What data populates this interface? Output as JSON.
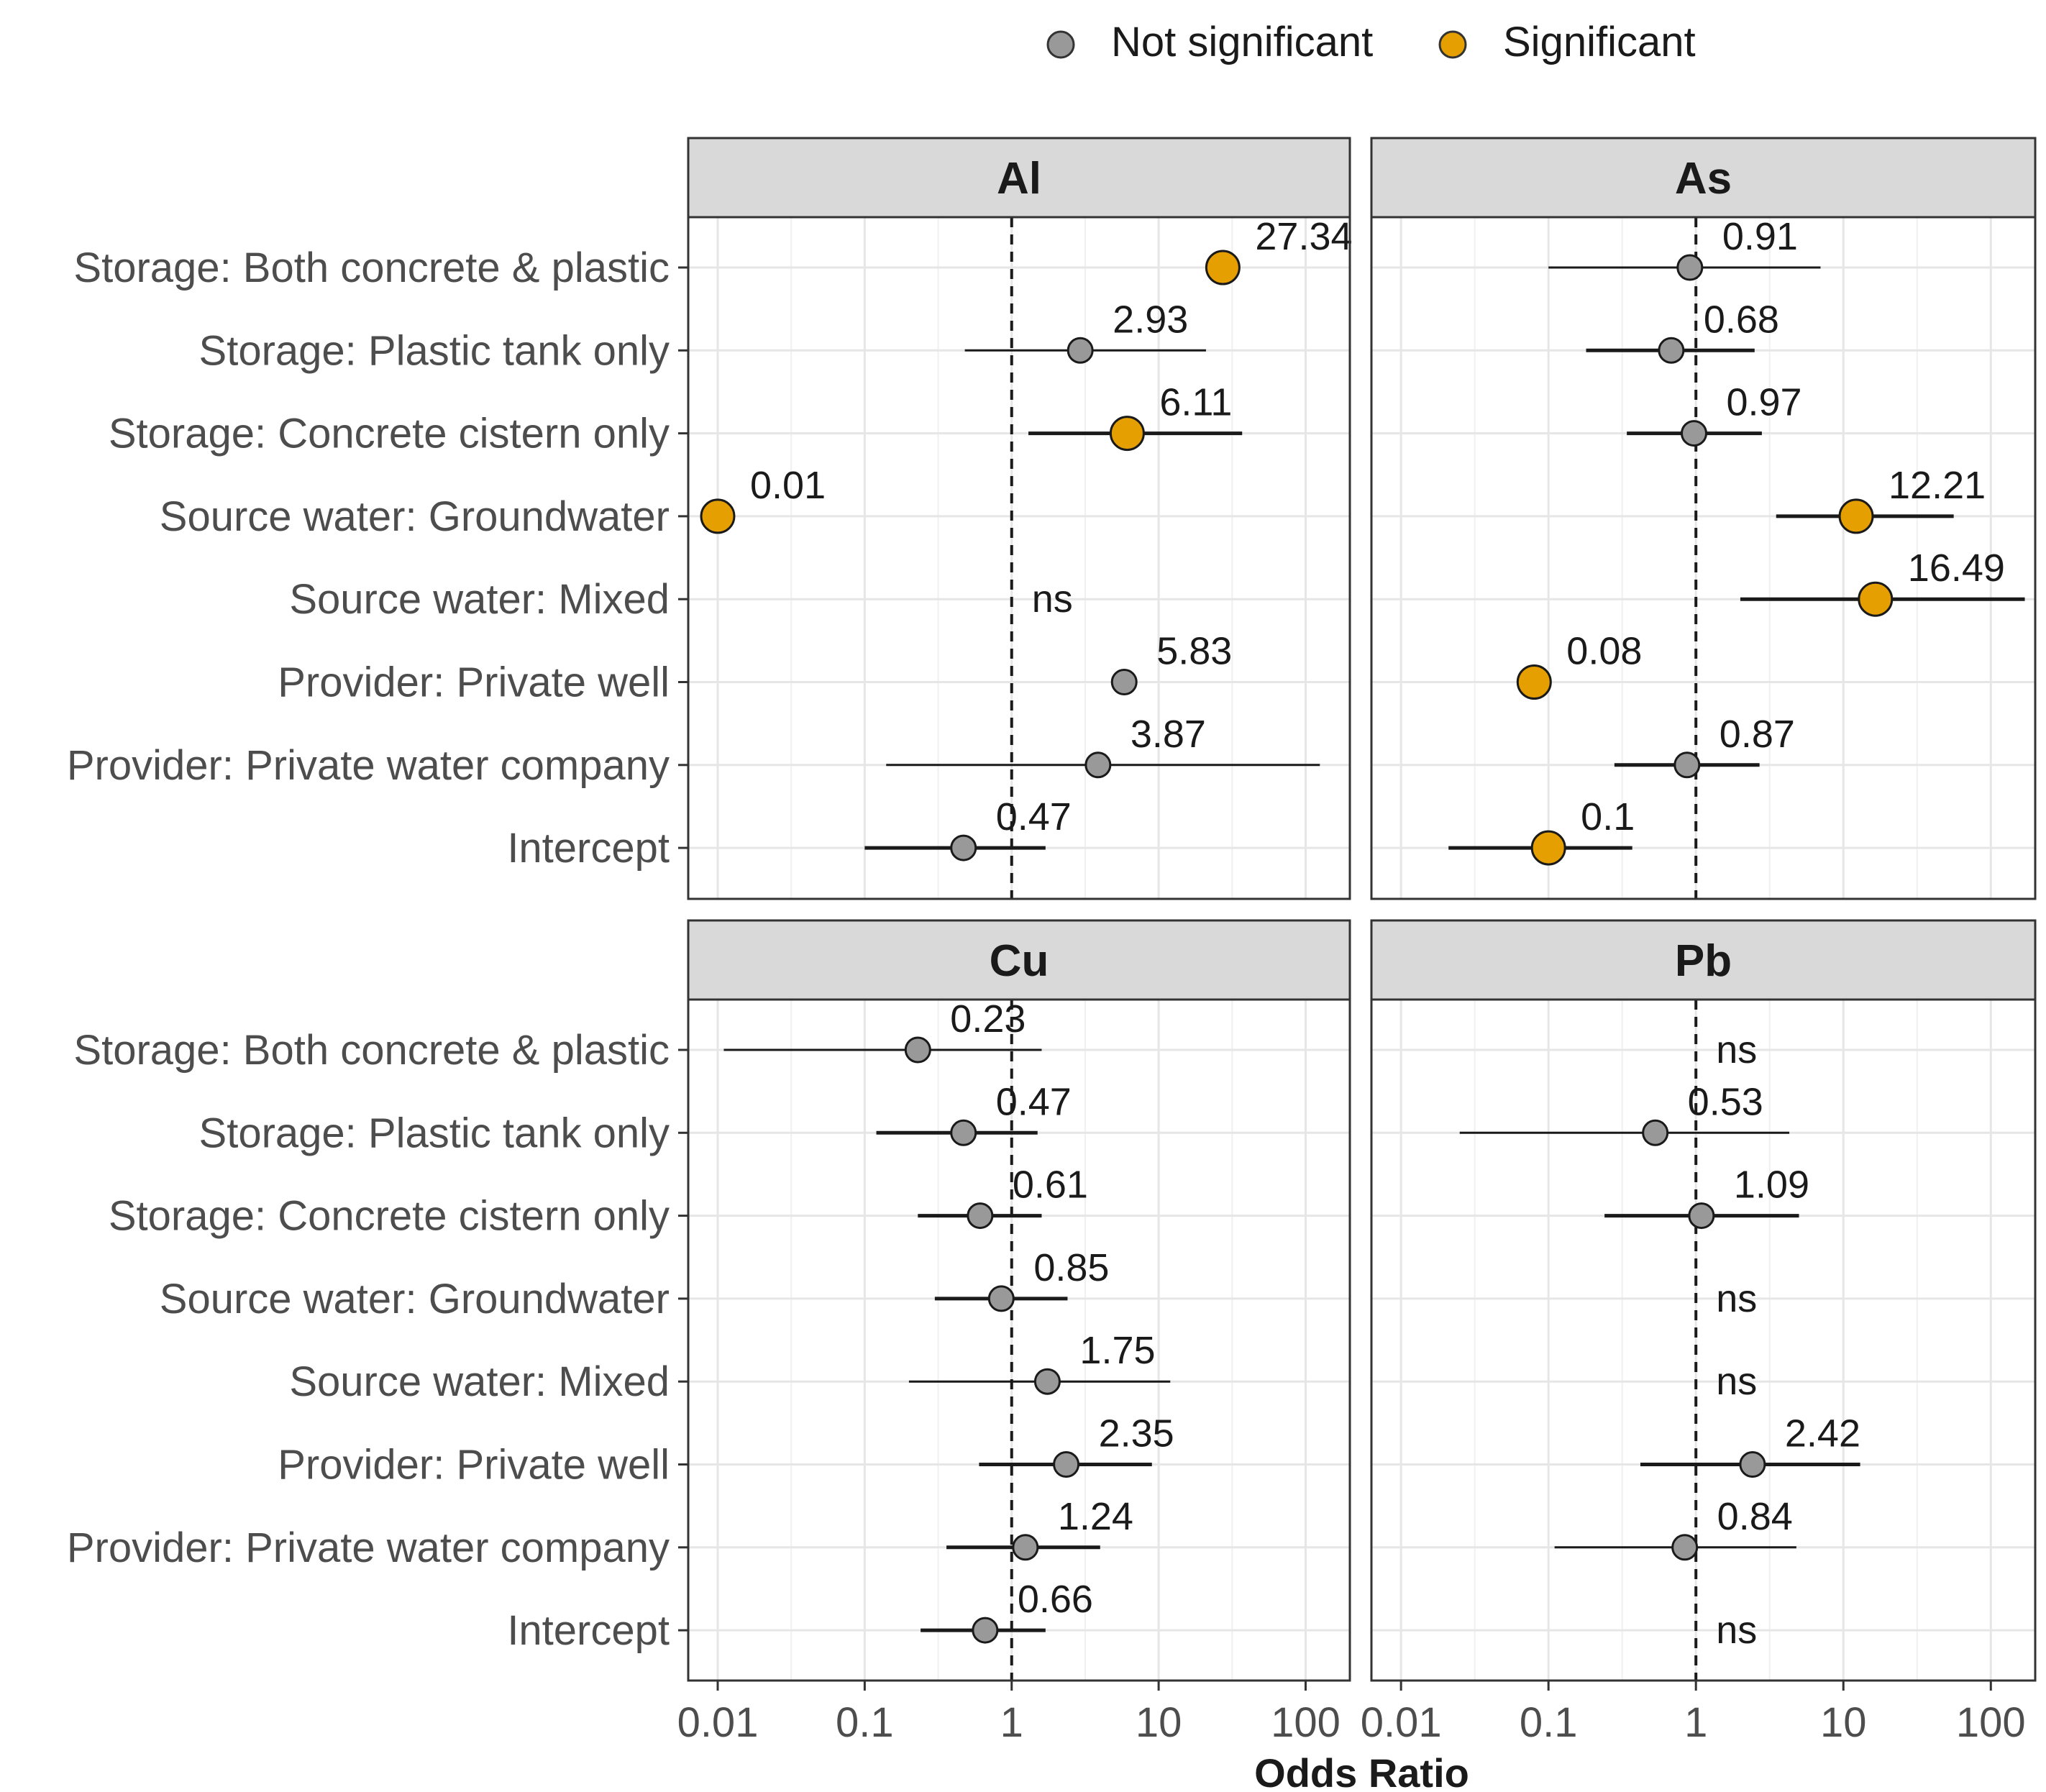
{
  "chart_data": {
    "type": "forest",
    "scale": "log",
    "xlabel": "Odds Ratio",
    "xlim": [
      0.0063,
      200
    ],
    "x_ticks": [
      0.01,
      0.1,
      1,
      10,
      100
    ],
    "x_tick_labels": [
      "0.01",
      "0.1",
      "1",
      "10",
      "100"
    ],
    "reference_line": 1,
    "legend": {
      "position": "top",
      "entries": [
        {
          "label": "Not significant",
          "color": "#999999"
        },
        {
          "label": "Significant",
          "color": "#E69F00"
        }
      ]
    },
    "categories": [
      "Storage: Both concrete & plastic",
      "Storage: Plastic tank only",
      "Storage: Concrete cistern only",
      "Source water: Groundwater",
      "Source water: Mixed",
      "Provider: Private well",
      "Provider: Private water company",
      "Intercept"
    ],
    "panels": [
      {
        "title": "Al",
        "points": [
          {
            "or": 27.34,
            "label": "27.34",
            "lo": null,
            "hi": null,
            "significant": true
          },
          {
            "or": 2.93,
            "label": "2.93",
            "lo": 0.48,
            "hi": 21,
            "significant": false
          },
          {
            "or": 6.11,
            "label": "6.11",
            "lo": 1.3,
            "hi": 37,
            "significant": true
          },
          {
            "or": 0.01,
            "label": "0.01",
            "lo": null,
            "hi": null,
            "significant": true
          },
          {
            "or": null,
            "label": "ns"
          },
          {
            "or": 5.83,
            "label": "5.83",
            "lo": null,
            "hi": null,
            "significant": false
          },
          {
            "or": 3.87,
            "label": "3.87",
            "lo": 0.14,
            "hi": 125,
            "significant": false
          },
          {
            "or": 0.47,
            "label": "0.47",
            "lo": 0.1,
            "hi": 1.7,
            "significant": false
          }
        ]
      },
      {
        "title": "As",
        "points": [
          {
            "or": 0.91,
            "label": "0.91",
            "lo": 0.1,
            "hi": 7,
            "significant": false
          },
          {
            "or": 0.68,
            "label": "0.68",
            "lo": 0.18,
            "hi": 2.5,
            "significant": false
          },
          {
            "or": 0.97,
            "label": "0.97",
            "lo": 0.34,
            "hi": 2.8,
            "significant": false
          },
          {
            "or": 12.21,
            "label": "12.21",
            "lo": 3.5,
            "hi": 56,
            "significant": true
          },
          {
            "or": 16.49,
            "label": "16.49",
            "lo": 2,
            "hi": 170,
            "significant": true
          },
          {
            "or": 0.08,
            "label": "0.08",
            "lo": null,
            "hi": null,
            "significant": true
          },
          {
            "or": 0.87,
            "label": "0.87",
            "lo": 0.28,
            "hi": 2.7,
            "significant": false
          },
          {
            "or": 0.1,
            "label": "0.1",
            "lo": 0.021,
            "hi": 0.37,
            "significant": true
          }
        ]
      },
      {
        "title": "Cu",
        "points": [
          {
            "or": 0.23,
            "label": "0.23",
            "lo": 0.011,
            "hi": 1.6,
            "significant": false
          },
          {
            "or": 0.47,
            "label": "0.47",
            "lo": 0.12,
            "hi": 1.5,
            "significant": false
          },
          {
            "or": 0.61,
            "label": "0.61",
            "lo": 0.23,
            "hi": 1.6,
            "significant": false
          },
          {
            "or": 0.85,
            "label": "0.85",
            "lo": 0.3,
            "hi": 2.4,
            "significant": false
          },
          {
            "or": 1.75,
            "label": "1.75",
            "lo": 0.2,
            "hi": 12,
            "significant": false
          },
          {
            "or": 2.35,
            "label": "2.35",
            "lo": 0.6,
            "hi": 9,
            "significant": false
          },
          {
            "or": 1.24,
            "label": "1.24",
            "lo": 0.36,
            "hi": 4,
            "significant": false
          },
          {
            "or": 0.66,
            "label": "0.66",
            "lo": 0.24,
            "hi": 1.7,
            "significant": false
          }
        ]
      },
      {
        "title": "Pb",
        "points": [
          {
            "or": null,
            "label": "ns"
          },
          {
            "or": 0.53,
            "label": "0.53",
            "lo": 0.025,
            "hi": 4.3,
            "significant": false
          },
          {
            "or": 1.09,
            "label": "1.09",
            "lo": 0.24,
            "hi": 5,
            "significant": false
          },
          {
            "or": null,
            "label": "ns"
          },
          {
            "or": null,
            "label": "ns"
          },
          {
            "or": 2.42,
            "label": "2.42",
            "lo": 0.42,
            "hi": 13,
            "significant": false
          },
          {
            "or": 0.84,
            "label": "0.84",
            "lo": 0.11,
            "hi": 4.8,
            "significant": false
          },
          {
            "or": null,
            "label": "ns"
          }
        ]
      }
    ]
  }
}
